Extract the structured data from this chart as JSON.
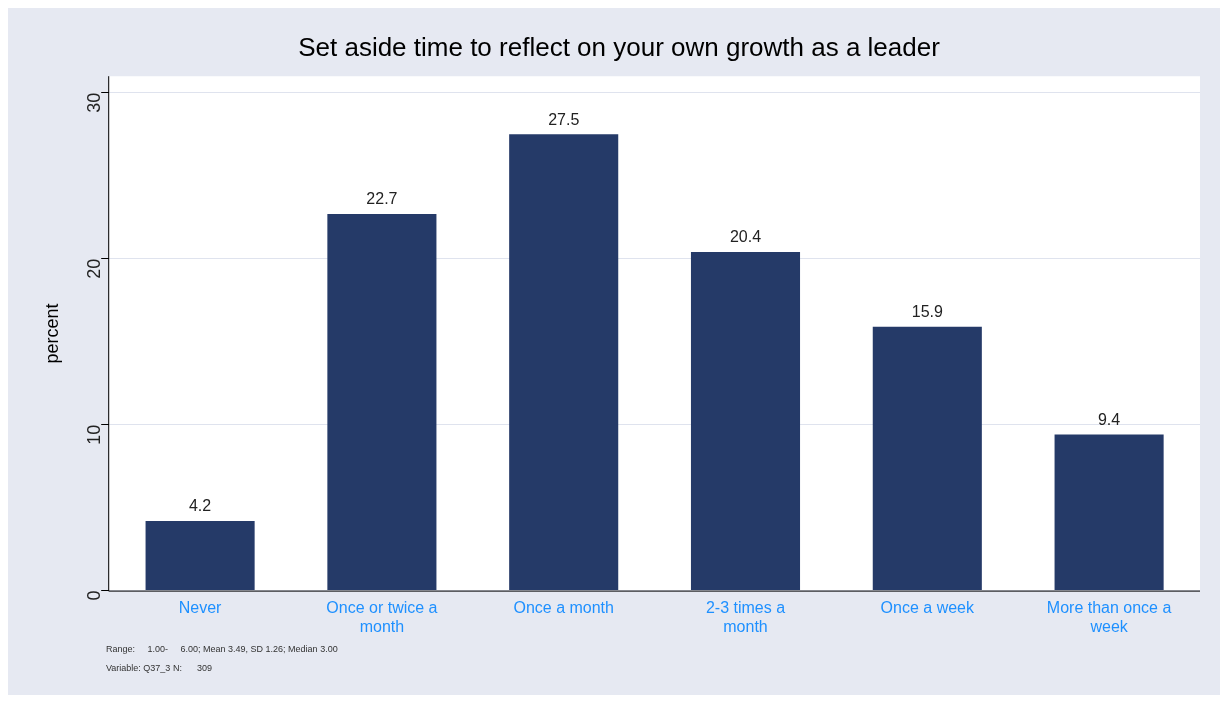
{
  "chart_data": {
    "type": "bar",
    "title": "Set aside time to reflect on your own growth as a leader",
    "ylabel": "percent",
    "categories": [
      "Never",
      "Once or twice a month",
      "Once a month",
      "2-3 times a month",
      "Once a week",
      "More than once a week"
    ],
    "values": [
      4.2,
      22.7,
      27.5,
      20.4,
      15.9,
      9.4
    ],
    "color": "#253a68",
    "ylim": [
      0,
      31
    ],
    "yticks": [
      0,
      10,
      20,
      30
    ],
    "grid": "y",
    "data_labels": true,
    "legend": false,
    "annotations": [
      "Range:     1.00-     6.00; Mean 3.49, SD 1.26; Median 3.00",
      "Variable: Q37_3 N:      309"
    ]
  }
}
